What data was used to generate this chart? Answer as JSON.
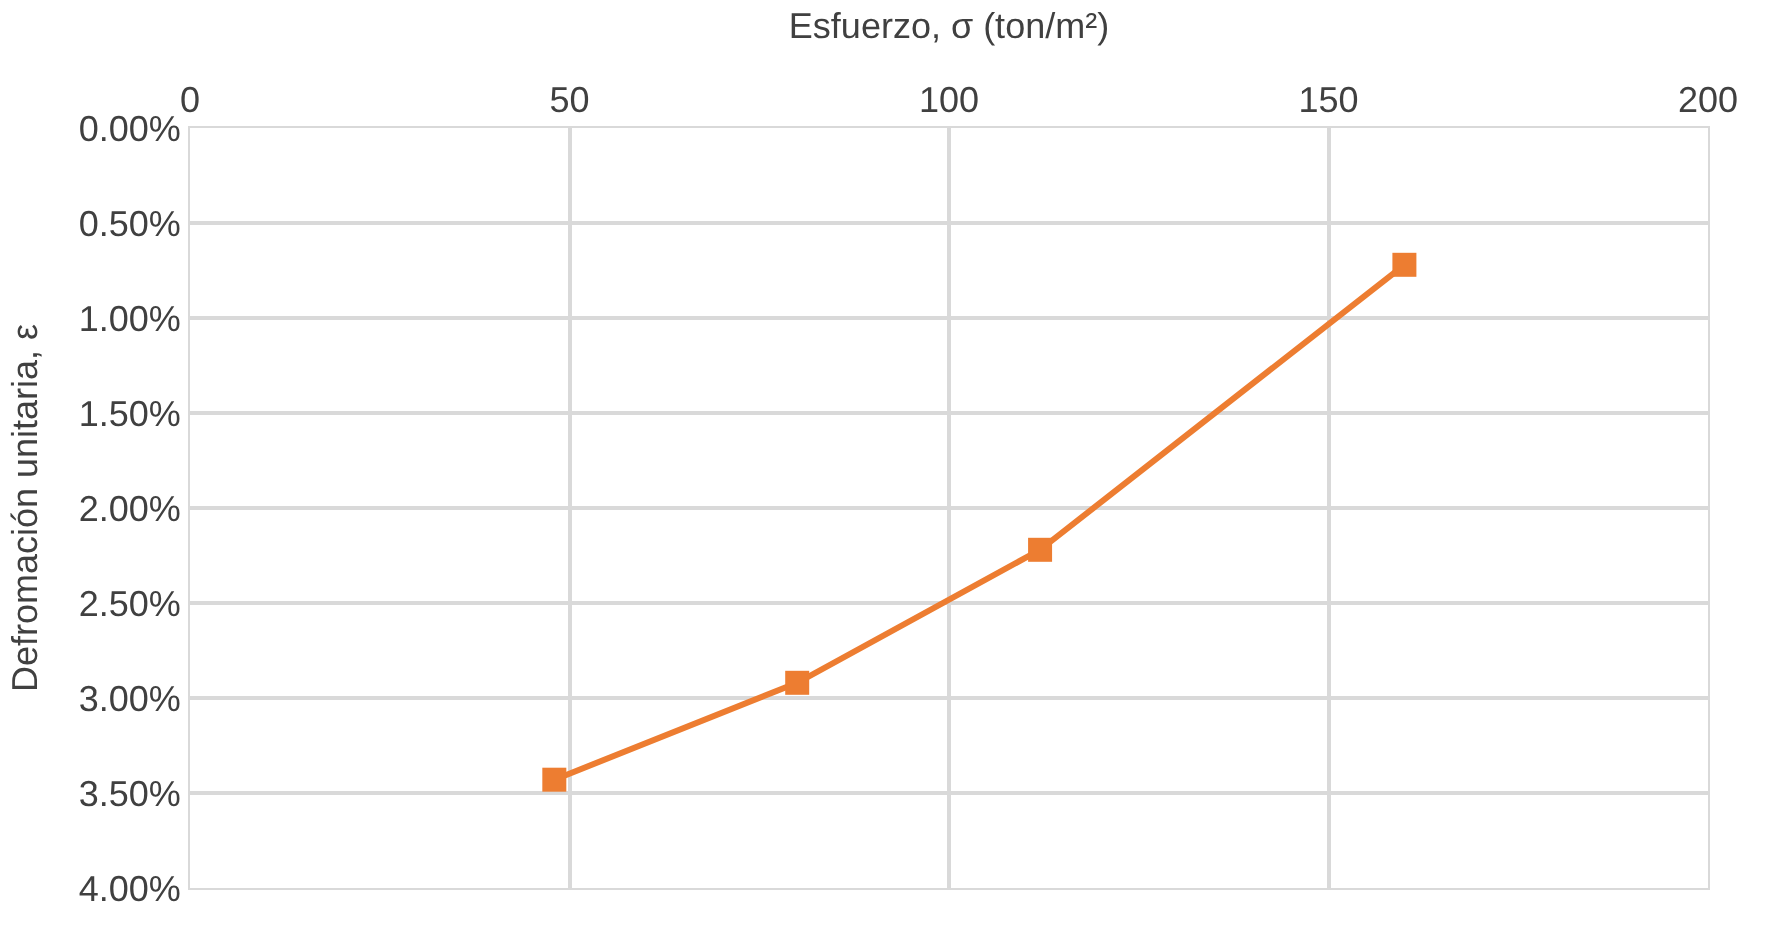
{
  "chart_data": {
    "type": "line",
    "xlabel": "Esfuerzo, σ (ton/m²)",
    "ylabel": "Defromación unitaria, ε",
    "x": [
      48,
      80,
      112,
      160
    ],
    "series": [
      {
        "color": "#ed7d31",
        "values": [
          3.43,
          2.92,
          2.22,
          0.72
        ]
      }
    ],
    "xlim": [
      0,
      200
    ],
    "xticks": [
      0,
      50,
      100,
      150,
      200
    ],
    "ylim": [
      4,
      0
    ],
    "yticks": [
      {
        "value": 0,
        "label": "0.00%"
      },
      {
        "value": 0.5,
        "label": "0.50%"
      },
      {
        "value": 1,
        "label": "1.00%"
      },
      {
        "value": 1.5,
        "label": "1.50%"
      },
      {
        "value": 2,
        "label": "2.00%"
      },
      {
        "value": 2.5,
        "label": "2.50%"
      },
      {
        "value": 3,
        "label": "3.00%"
      },
      {
        "value": 3.5,
        "label": "3.50%"
      },
      {
        "value": 4,
        "label": "4.00%"
      }
    ],
    "grid": true,
    "marker": "square",
    "line_style": "solid"
  }
}
